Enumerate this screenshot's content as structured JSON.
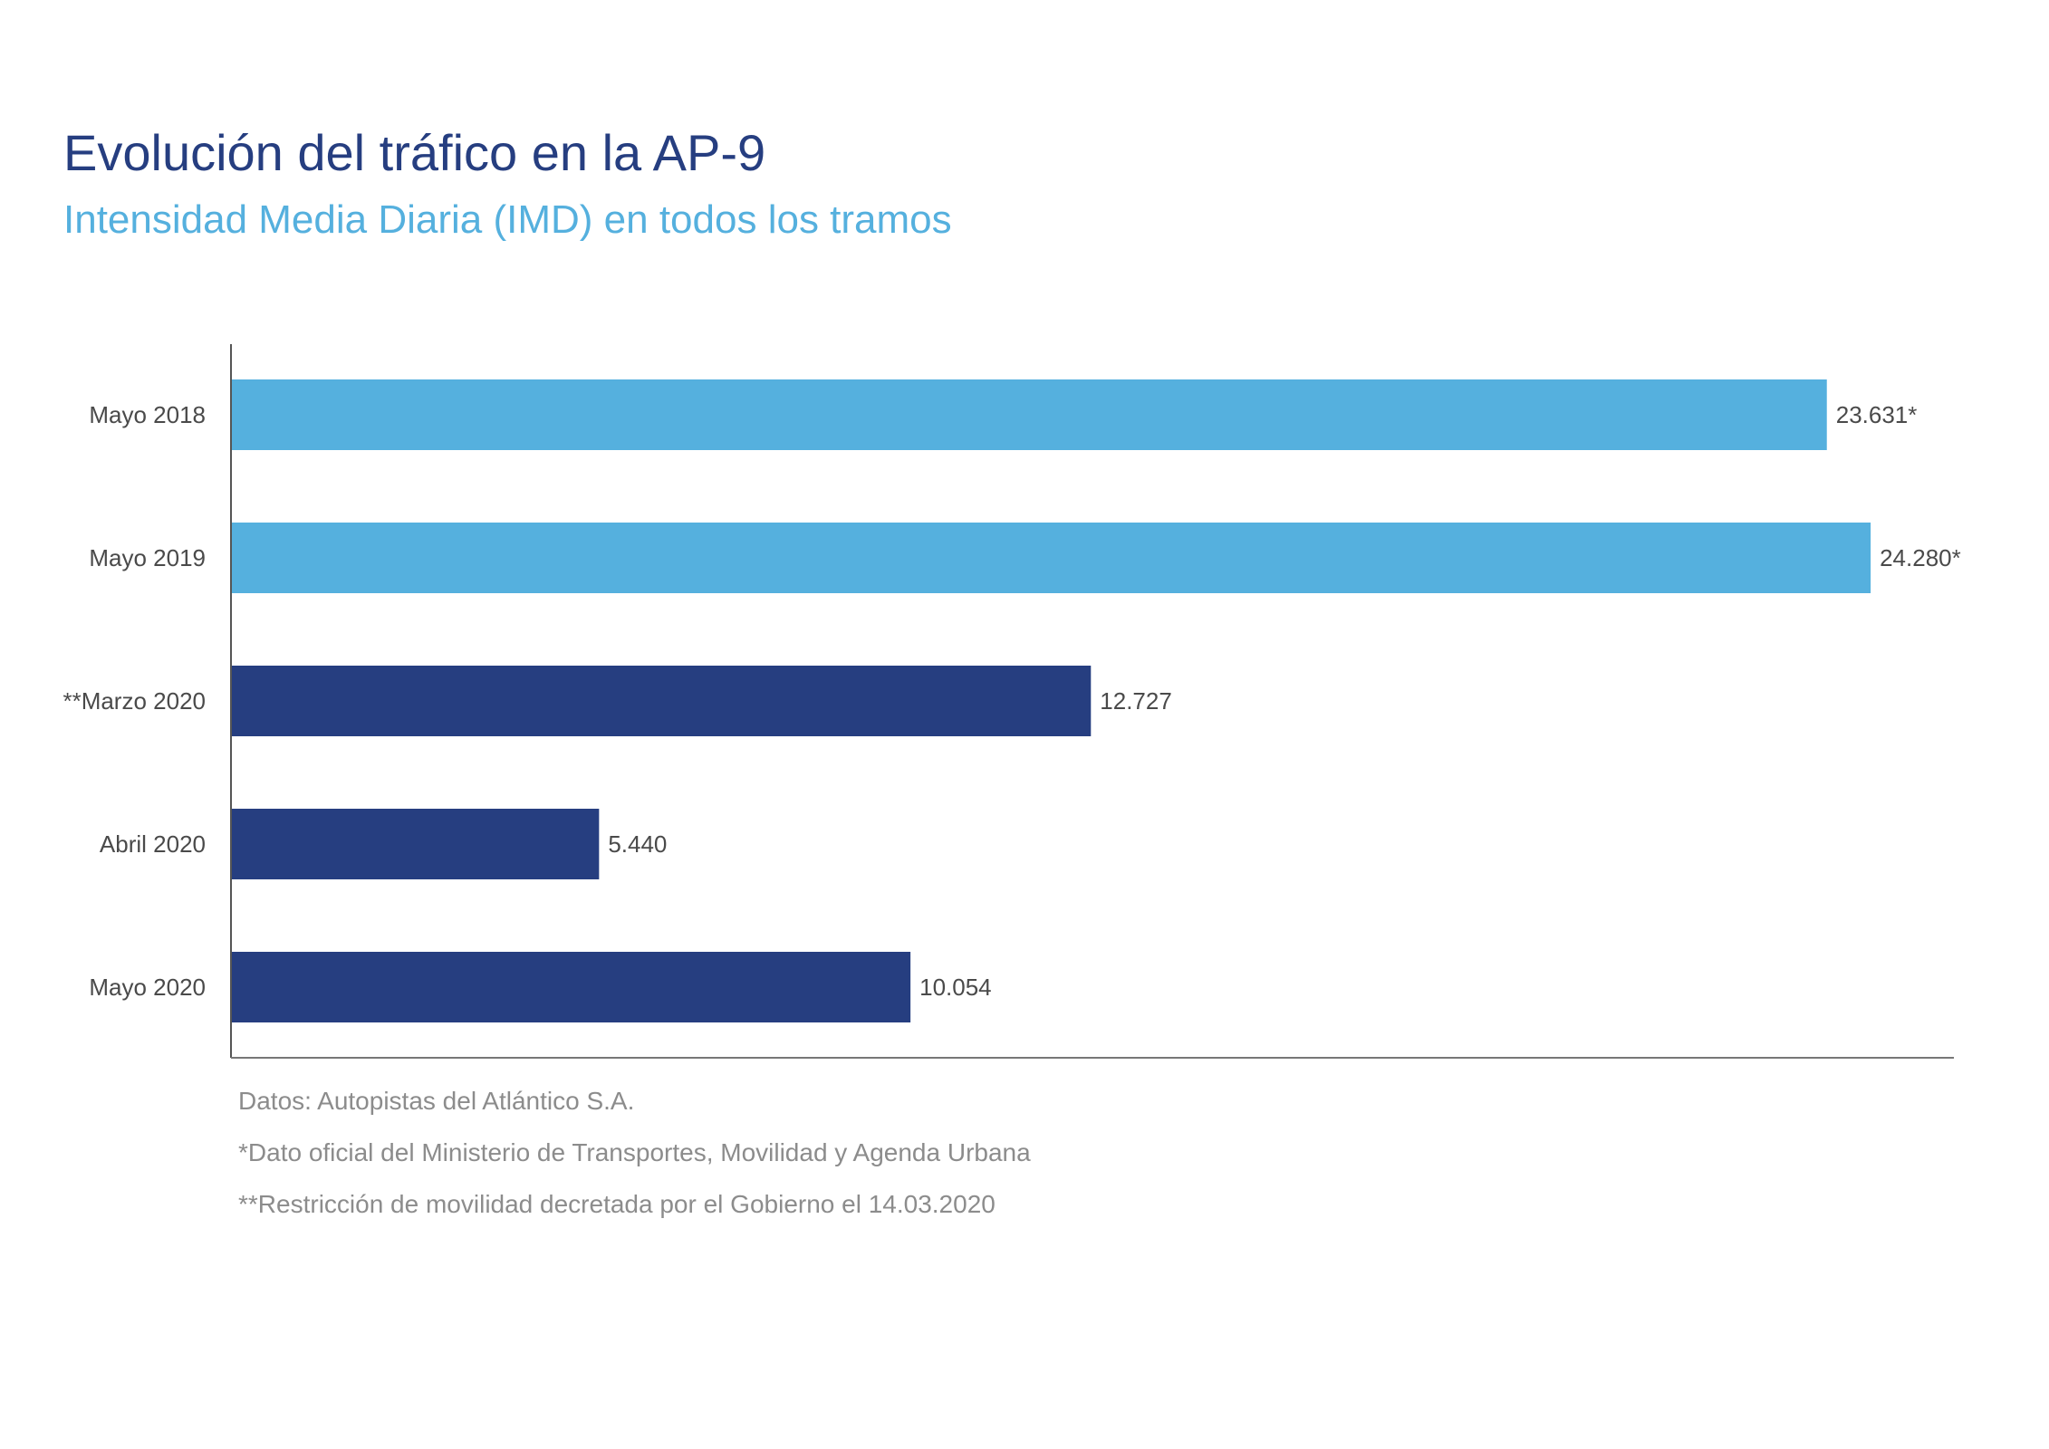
{
  "chart_data": {
    "type": "bar",
    "orientation": "horizontal",
    "title": "Evolución del tráfico en la AP-9",
    "subtitle": "Intensidad Media Diaria (IMD) en todos los tramos",
    "categories": [
      "Mayo 2018",
      "Mayo 2019",
      "**Marzo 2020",
      "Abril 2020",
      "Mayo 2020"
    ],
    "values": [
      23631,
      24280,
      12727,
      5440,
      10054
    ],
    "value_labels": [
      "23.631*",
      "24.280*",
      "12.727",
      "5.440",
      "10.054"
    ],
    "bar_colors": [
      "#55b0de",
      "#55b0de",
      "#263e80",
      "#263e80",
      "#263e80"
    ],
    "xlim": [
      0,
      25500
    ],
    "grid": false,
    "legend": "none"
  },
  "notes": [
    "Datos: Autopistas del Atlántico S.A.",
    "*Dato oficial del Ministerio de Transportes, Movilidad y Agenda Urbana",
    "**Restricción de movilidad decretada por el Gobierno el 14.03.2020"
  ]
}
